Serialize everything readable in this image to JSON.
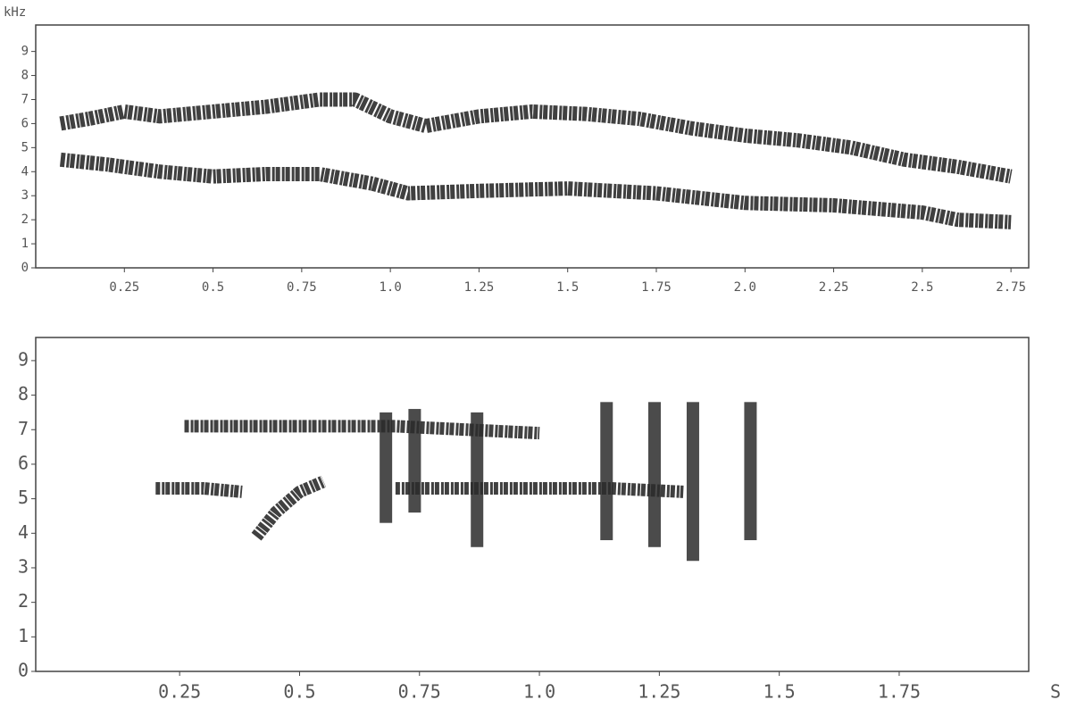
{
  "chart_data": [
    {
      "type": "spectrogram",
      "y_label": "kHz",
      "color": "#2b2b2b",
      "xlim": [
        0,
        2.8
      ],
      "ylim": [
        0,
        10.1
      ],
      "xticks": [
        0.25,
        0.5,
        0.75,
        {
          "value": 1.0,
          "label": "1.0"
        },
        1.25,
        1.5,
        1.75,
        {
          "value": 2.0,
          "label": "2.0"
        },
        2.25,
        2.5,
        2.75
      ],
      "yticks": [
        0,
        1,
        2,
        3,
        4,
        5,
        6,
        7,
        8,
        9
      ],
      "traces": [
        {
          "x": [
            0.07,
            0.15,
            0.25,
            0.35,
            0.5,
            0.65,
            0.8,
            0.9,
            1.0,
            1.1,
            1.25,
            1.4,
            1.55,
            1.7,
            1.85,
            2.0,
            2.15,
            2.3,
            2.45,
            2.6,
            2.75
          ],
          "y": [
            6,
            6.2,
            6.5,
            6.3,
            6.5,
            6.7,
            7,
            7,
            6.3,
            5.9,
            6.3,
            6.5,
            6.4,
            6.2,
            5.8,
            5.5,
            5.3,
            5,
            4.5,
            4.2,
            3.8
          ]
        },
        {
          "x": [
            0.07,
            0.2,
            0.35,
            0.5,
            0.65,
            0.8,
            0.95,
            1.05,
            1.25,
            1.5,
            1.75,
            2.0,
            2.25,
            2.5,
            2.6,
            2.75
          ],
          "y": [
            4.5,
            4.3,
            4,
            3.8,
            3.9,
            3.9,
            3.5,
            3.1,
            3.2,
            3.3,
            3.1,
            2.7,
            2.6,
            2.3,
            2,
            1.9
          ]
        }
      ]
    },
    {
      "type": "spectrogram",
      "x_label": "S",
      "color": "#2b2b2b",
      "xlim": [
        -0.05,
        2.02
      ],
      "ylim": [
        0,
        9.67
      ],
      "xticks": [
        0.25,
        0.5,
        0.75,
        {
          "value": 1.0,
          "label": "1.0"
        },
        1.25,
        1.5,
        1.75
      ],
      "yticks": [
        0,
        1,
        2,
        3,
        4,
        5,
        6,
        7,
        8,
        9
      ],
      "traces": [
        {
          "x": [
            0.26,
            0.4,
            0.55,
            0.7,
            0.85,
            1.0
          ],
          "y": [
            7.1,
            7.1,
            7.1,
            7.1,
            7.0,
            6.9
          ]
        },
        {
          "x": [
            0.2,
            0.3,
            0.38
          ],
          "y": [
            5.3,
            5.3,
            5.2
          ]
        },
        {
          "x": [
            0.41,
            0.45,
            0.5,
            0.55
          ],
          "y": [
            3.9,
            4.6,
            5.2,
            5.5
          ]
        },
        {
          "x": [
            0.7,
            0.85,
            1.0,
            1.15,
            1.3
          ],
          "y": [
            5.3,
            5.3,
            5.3,
            5.3,
            5.2
          ]
        }
      ],
      "bursts": {
        "x": [
          0.68,
          0.74,
          0.87,
          1.14,
          1.24,
          1.32,
          1.44
        ],
        "low": [
          4.3,
          4.6,
          3.6,
          3.8,
          3.6,
          3.2,
          3.8
        ],
        "high": [
          7.5,
          7.6,
          7.5,
          7.8,
          7.8,
          7.8,
          7.8
        ]
      }
    }
  ]
}
